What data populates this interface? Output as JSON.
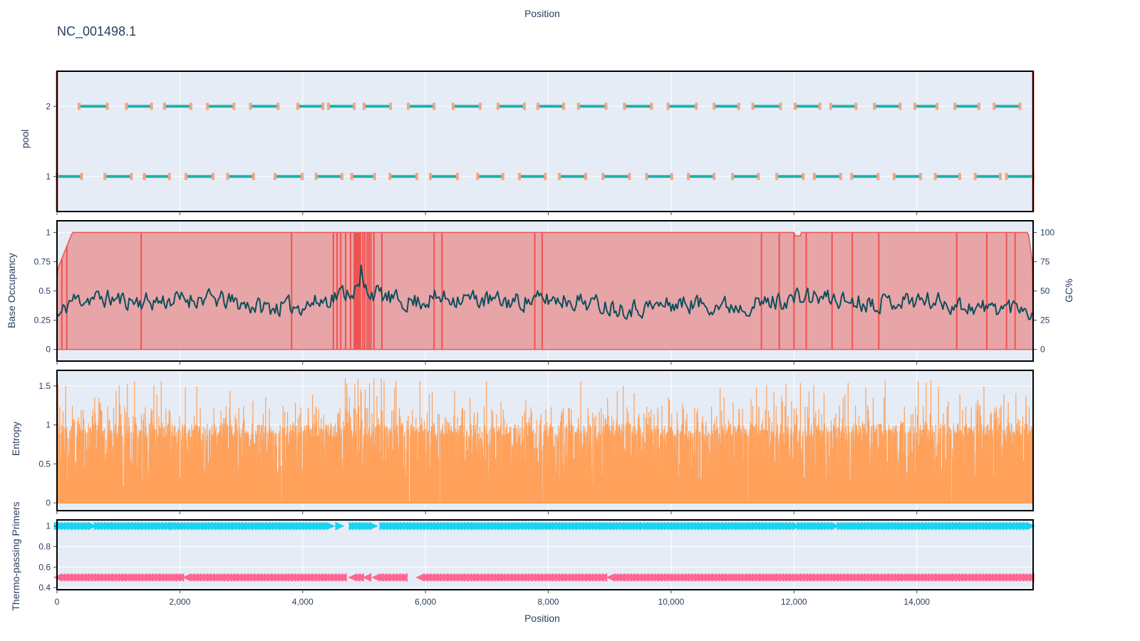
{
  "figure": {
    "title": "NC_001498.1",
    "top_label": "Position",
    "x_axis_title": "Position",
    "x_range": [
      0,
      15894
    ],
    "x_ticks": [
      {
        "v": 0,
        "label": "0"
      },
      {
        "v": 2000,
        "label": "2,000"
      },
      {
        "v": 4000,
        "label": "4,000"
      },
      {
        "v": 6000,
        "label": "6,000"
      },
      {
        "v": 8000,
        "label": "8,000"
      },
      {
        "v": 10000,
        "label": "10,000"
      },
      {
        "v": 12000,
        "label": "12,000"
      },
      {
        "v": 14000,
        "label": "14,000"
      }
    ],
    "colors": {
      "plot_bg": "#e5ecf6",
      "grid": "#ffffff",
      "amplicon": "#20b2aa",
      "primer_cap": "#f4a582",
      "occupancy_fill": "#e8a5a8",
      "occupancy_line": "#ef5350",
      "gc_line": "#0b4f5c",
      "entropy": "#ffa15a",
      "primer_fwd": "#19d3f3",
      "primer_rev": "#ff6692",
      "axis_text": "#2a3f5f",
      "frame": "#000000"
    }
  },
  "chart_data": [
    {
      "name": "pool",
      "type": "scatter",
      "ylabel": "pool",
      "ylim": [
        0.5,
        2.5
      ],
      "yticks": [
        {
          "v": 1,
          "label": "1"
        },
        {
          "v": 2,
          "label": "2"
        }
      ],
      "pool1_amplicons": [
        [
          0,
          400
        ],
        [
          780,
          1210
        ],
        [
          1420,
          1830
        ],
        [
          2100,
          2540
        ],
        [
          2780,
          3200
        ],
        [
          3550,
          3990
        ],
        [
          4220,
          4640
        ],
        [
          4800,
          5170
        ],
        [
          5420,
          5860
        ],
        [
          6080,
          6520
        ],
        [
          6850,
          7260
        ],
        [
          7530,
          7950
        ],
        [
          8180,
          8610
        ],
        [
          8890,
          9320
        ],
        [
          9600,
          10010
        ],
        [
          10280,
          10700
        ],
        [
          11000,
          11420
        ],
        [
          11720,
          12150
        ],
        [
          12330,
          12760
        ],
        [
          12940,
          13370
        ],
        [
          13630,
          14060
        ],
        [
          14300,
          14700
        ],
        [
          14950,
          15360
        ],
        [
          15460,
          15894
        ]
      ],
      "pool2_amplicons": [
        [
          360,
          820
        ],
        [
          1130,
          1540
        ],
        [
          1750,
          2180
        ],
        [
          2450,
          2880
        ],
        [
          3150,
          3600
        ],
        [
          3920,
          4330
        ],
        [
          4420,
          4840
        ],
        [
          5000,
          5430
        ],
        [
          5720,
          6140
        ],
        [
          6450,
          6890
        ],
        [
          7180,
          7610
        ],
        [
          7830,
          8250
        ],
        [
          8490,
          8940
        ],
        [
          9240,
          9680
        ],
        [
          9950,
          10410
        ],
        [
          10700,
          11100
        ],
        [
          11330,
          11780
        ],
        [
          12020,
          12420
        ],
        [
          12600,
          13010
        ],
        [
          13310,
          13730
        ],
        [
          13970,
          14330
        ],
        [
          14620,
          15010
        ],
        [
          15260,
          15680
        ]
      ],
      "window_start": 0,
      "window_end": 15894
    },
    {
      "name": "occupancy",
      "type": "area",
      "ylabel": "Base Occupancy",
      "y2label": "GC%",
      "ylim": [
        -0.1,
        1.1
      ],
      "yticks": [
        {
          "v": 0,
          "label": "0"
        },
        {
          "v": 0.25,
          "label": "0.25"
        },
        {
          "v": 0.5,
          "label": "0.5"
        },
        {
          "v": 0.75,
          "label": "0.75"
        },
        {
          "v": 1,
          "label": "1"
        }
      ],
      "y2lim": [
        -10,
        110
      ],
      "y2ticks": [
        {
          "v": 0,
          "label": "0"
        },
        {
          "v": 25,
          "label": "25"
        },
        {
          "v": 50,
          "label": "50"
        },
        {
          "v": 75,
          "label": "75"
        },
        {
          "v": 100,
          "label": "100"
        }
      ],
      "dips": [
        80,
        160,
        1370,
        3820,
        4500,
        4560,
        4620,
        4700,
        4780,
        4840,
        4860,
        4880,
        4900,
        4920,
        4940,
        4980,
        5010,
        5050,
        5080,
        5110,
        5160,
        5290,
        6140,
        6270,
        7780,
        7900,
        11470,
        11760,
        12000,
        12200,
        12620,
        12950,
        13380,
        14650,
        15140,
        15460,
        15600
      ],
      "gc_mean": 40,
      "gc_peak_x": 4950,
      "gc_peak_value": 72
    },
    {
      "name": "entropy",
      "type": "area",
      "ylabel": "Entropy",
      "ylim": [
        -0.1,
        1.7
      ],
      "yticks": [
        {
          "v": 0,
          "label": "0"
        },
        {
          "v": 0.5,
          "label": "0.5"
        },
        {
          "v": 1,
          "label": "1"
        },
        {
          "v": 1.5,
          "label": "1.5"
        }
      ],
      "max_value": 1.6
    },
    {
      "name": "primers",
      "type": "scatter",
      "ylabel": "Thermo-passing Primers",
      "ylim": [
        0.38,
        1.06
      ],
      "yticks": [
        {
          "v": 0.4,
          "label": "0.4"
        },
        {
          "v": 0.6,
          "label": "0.6"
        },
        {
          "v": 0.8,
          "label": "0.8"
        },
        {
          "v": 1,
          "label": "1"
        }
      ],
      "forward_y": 1,
      "reverse_y": 0.5,
      "forward_ranges": [
        [
          0,
          600
        ],
        [
          650,
          1900
        ],
        [
          1900,
          4500
        ],
        [
          4580,
          4640
        ],
        [
          4800,
          5200
        ],
        [
          5300,
          9600
        ],
        [
          9600,
          12080
        ],
        [
          12100,
          12700
        ],
        [
          12750,
          15894
        ]
      ],
      "reverse_ranges": [
        [
          0,
          2050
        ],
        [
          2100,
          4700
        ],
        [
          4800,
          4950
        ],
        [
          5030,
          5100
        ],
        [
          5180,
          5700
        ],
        [
          5900,
          8950
        ],
        [
          9000,
          12000
        ],
        [
          12030,
          15894
        ]
      ]
    }
  ]
}
